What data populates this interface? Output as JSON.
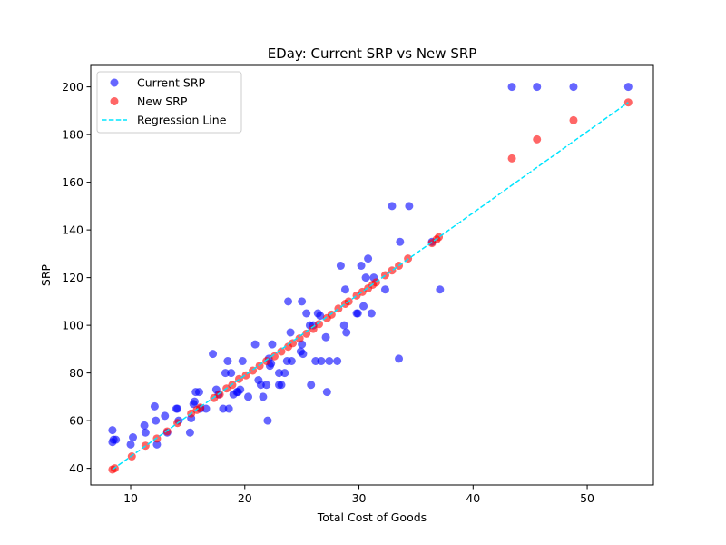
{
  "chart_data": {
    "type": "scatter",
    "title": "EDay: Current SRP vs New SRP",
    "xlabel": "Total Cost of Goods",
    "ylabel": "SRP",
    "xlim": [
      6.5,
      55.8
    ],
    "ylim": [
      33,
      209
    ],
    "xticks": [
      10,
      20,
      30,
      40,
      50
    ],
    "yticks": [
      40,
      60,
      80,
      100,
      120,
      140,
      160,
      180,
      200
    ],
    "grid": false,
    "legend_position": "top-left",
    "colors": {
      "current": "#0000ff",
      "new": "#ff0000",
      "regression": "#00e5ff"
    },
    "series": [
      {
        "name": "Current SRP",
        "x": [
          8.4,
          8.5,
          8.7,
          8.4,
          10.0,
          10.2,
          11.2,
          11.3,
          12.2,
          12.3,
          12.1,
          13.0,
          13.2,
          14.0,
          14.1,
          14.2,
          15.2,
          15.3,
          15.5,
          15.7,
          15.6,
          16.0,
          16.1,
          16.6,
          17.2,
          17.5,
          17.7,
          18.1,
          18.3,
          18.5,
          18.6,
          18.8,
          19.0,
          19.3,
          19.4,
          19.6,
          19.8,
          20.3,
          21.2,
          20.9,
          21.4,
          21.6,
          21.9,
          22.0,
          22.2,
          22.4,
          22.3,
          22.1,
          23.0,
          23.0,
          23.2,
          23.5,
          23.7,
          23.8,
          24.0,
          24.1,
          25.0,
          25.0,
          24.9,
          25.1,
          25.4,
          25.7,
          25.8,
          26.0,
          26.2,
          26.4,
          26.6,
          26.7,
          27.1,
          27.2,
          27.4,
          28.1,
          28.4,
          28.7,
          28.8,
          28.9,
          29.8,
          29.9,
          30.2,
          30.4,
          30.6,
          30.8,
          31.1,
          31.3,
          32.3,
          32.9,
          33.5,
          33.6,
          34.4,
          36.4,
          37.1,
          43.4,
          45.6,
          48.8,
          53.6
        ],
        "y": [
          56,
          52,
          52,
          51,
          50,
          53,
          58,
          55,
          60,
          50,
          66,
          62,
          55,
          65,
          65,
          60,
          55,
          61,
          67,
          72,
          68,
          72,
          65,
          65,
          88,
          73,
          71,
          65,
          80,
          85,
          65,
          80,
          71,
          72,
          72,
          73,
          85,
          70,
          77,
          92,
          75,
          70,
          75,
          60,
          83,
          92,
          84,
          86,
          80,
          75,
          75,
          80,
          85,
          110,
          97,
          85,
          110,
          92,
          89,
          88,
          105,
          100,
          75,
          100,
          85,
          105,
          104,
          85,
          95,
          72,
          85,
          85,
          125,
          100,
          115,
          97,
          105,
          105,
          125,
          108,
          120,
          128,
          105,
          120,
          115,
          150,
          86,
          135,
          150,
          135,
          115,
          200,
          200,
          200,
          200
        ]
      },
      {
        "name": "New SRP",
        "x": [
          8.4,
          8.6,
          10.1,
          11.3,
          12.3,
          13.2,
          14.1,
          15.3,
          15.8,
          16.1,
          17.3,
          17.8,
          18.4,
          18.9,
          19.5,
          20.1,
          20.7,
          21.3,
          21.9,
          22.6,
          23.2,
          23.8,
          24.2,
          24.8,
          25.4,
          26.0,
          26.5,
          27.2,
          27.6,
          28.2,
          28.8,
          29.1,
          29.8,
          30.3,
          30.8,
          31.2,
          31.5,
          32.3,
          32.9,
          33.5,
          34.3,
          36.4,
          36.8,
          37.0,
          43.4,
          45.6,
          48.8,
          53.6
        ],
        "y": [
          39.5,
          40,
          45,
          49.5,
          52.5,
          55.5,
          59,
          63,
          64.5,
          65.5,
          69.5,
          71,
          73.5,
          75,
          77.5,
          79,
          81,
          83,
          85,
          87,
          89,
          91,
          92.5,
          94.5,
          96.5,
          98.5,
          100.5,
          103,
          104.5,
          107,
          109,
          110,
          112.5,
          114,
          115.5,
          117,
          118,
          121,
          123,
          125,
          128,
          134.5,
          136,
          137,
          170,
          178,
          186,
          193.5
        ]
      }
    ],
    "regression": {
      "name": "Regression Line",
      "x": [
        8.4,
        53.6
      ],
      "y": [
        39.5,
        193.5
      ]
    }
  }
}
